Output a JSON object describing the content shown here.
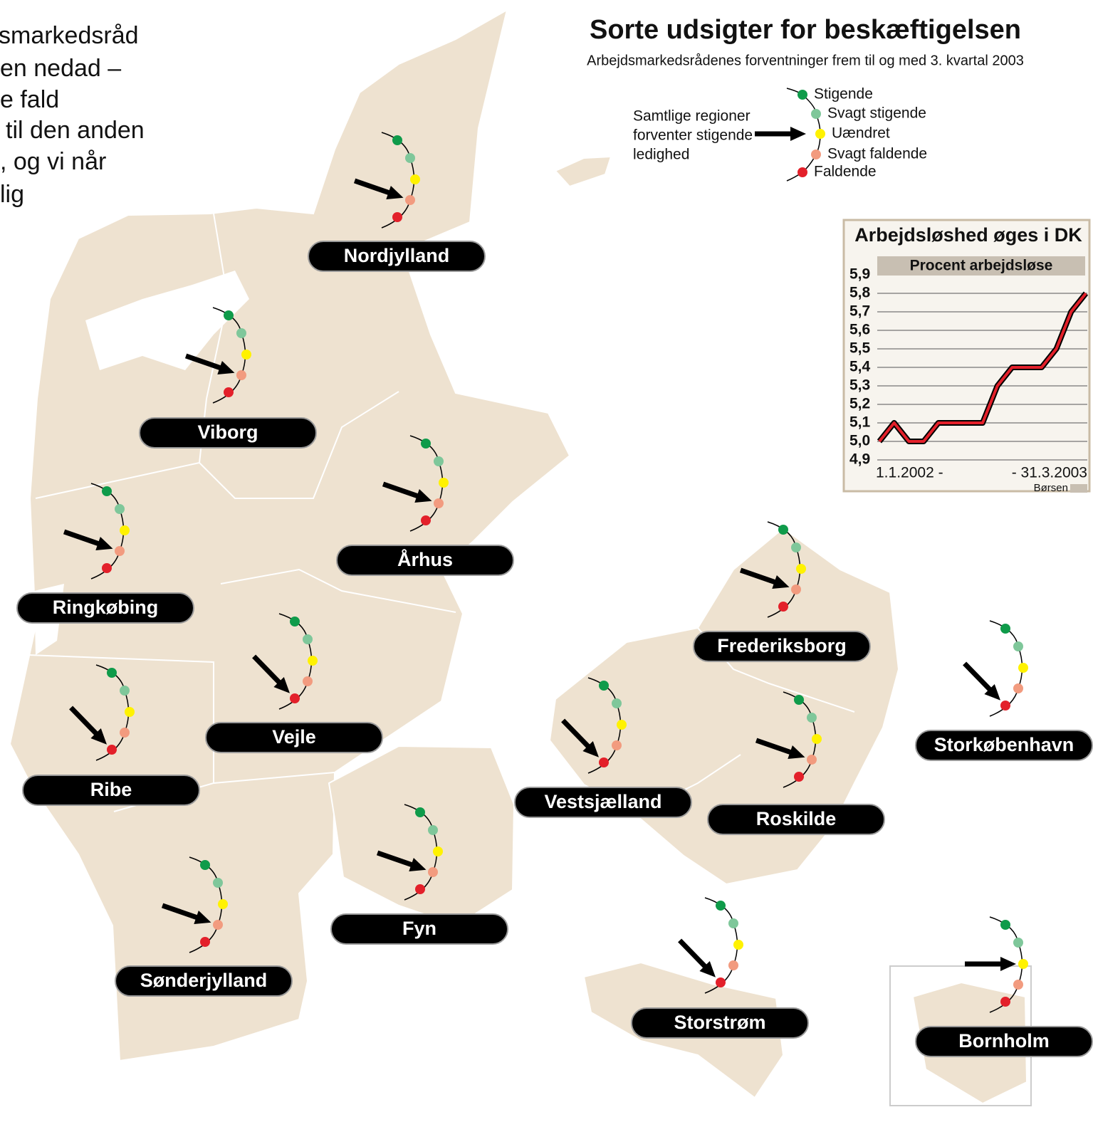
{
  "title": "Sorte udsigter for beskæftigelsen",
  "subtitle": "Arbejdsmarkedsrådenes forventninger frem til og med 3. kvartal 2003",
  "intro_lines": [
    "smarkedsråd",
    "en nedad –",
    "e fald",
    "til den anden",
    ", og vi når",
    "lig"
  ],
  "legend": {
    "note_lines": [
      "Samtlige regioner",
      "forventer stigende",
      "ledighed"
    ],
    "items": [
      {
        "label": "Stigende",
        "color": "#0f9b4a"
      },
      {
        "label": "Svagt stigende",
        "color": "#7fc79a"
      },
      {
        "label": "Uændret",
        "color": "#fff200"
      },
      {
        "label": "Svagt faldende",
        "color": "#f29b7f"
      },
      {
        "label": "Faldende",
        "color": "#e3202a"
      }
    ]
  },
  "regions": [
    {
      "name": "Nordjylland",
      "outlook": 3
    },
    {
      "name": "Viborg",
      "outlook": 3
    },
    {
      "name": "Århus",
      "outlook": 3
    },
    {
      "name": "Ringkøbing",
      "outlook": 3
    },
    {
      "name": "Vejle",
      "outlook": 4
    },
    {
      "name": "Ribe",
      "outlook": 4
    },
    {
      "name": "Sønderjylland",
      "outlook": 3
    },
    {
      "name": "Fyn",
      "outlook": 3
    },
    {
      "name": "Frederiksborg",
      "outlook": 3
    },
    {
      "name": "Vestsjælland",
      "outlook": 4
    },
    {
      "name": "Roskilde",
      "outlook": 3
    },
    {
      "name": "Storkøbenhavn",
      "outlook": 4
    },
    {
      "name": "Storstrøm",
      "outlook": 4
    },
    {
      "name": "Bornholm",
      "outlook": 2
    }
  ],
  "chart_data": {
    "type": "line",
    "title": "Arbejdsløshed øges i DK",
    "subtitle": "Procent arbejdsløse",
    "source": "Børsen",
    "categories": [
      "1.1.2002 -",
      null,
      null,
      null,
      null,
      null,
      null,
      null,
      null,
      null,
      null,
      null,
      null,
      null,
      "- 31.3.2003"
    ],
    "series": [
      {
        "color": "#e3202a",
        "values": [
          5.0,
          5.1,
          5.0,
          5.0,
          5.1,
          5.1,
          5.1,
          5.1,
          5.3,
          5.4,
          5.4,
          5.4,
          5.5,
          5.7,
          5.8
        ]
      }
    ],
    "ylim": [
      4.9,
      5.9
    ],
    "yticks": [
      {
        "value": 5.9,
        "label": "5,9"
      },
      {
        "value": 5.8,
        "label": "5,8"
      },
      {
        "value": 5.7,
        "label": "5,7"
      },
      {
        "value": 5.6,
        "label": "5,6"
      },
      {
        "value": 5.5,
        "label": "5,5"
      },
      {
        "value": 5.4,
        "label": "5,4"
      },
      {
        "value": 5.3,
        "label": "5,3"
      },
      {
        "value": 5.2,
        "label": "5,2"
      },
      {
        "value": 5.1,
        "label": "5,1"
      },
      {
        "value": 5.0,
        "label": "5,0"
      },
      {
        "value": 4.9,
        "label": "4,9"
      }
    ],
    "grid": true
  }
}
